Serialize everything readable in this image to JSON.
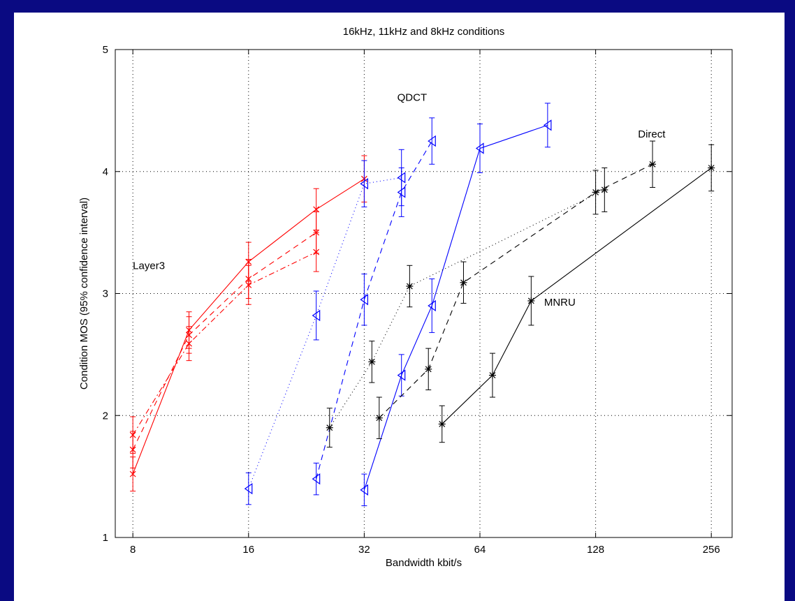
{
  "chart_data": {
    "type": "line",
    "title": "16kHz, 11kHz and 8kHz conditions",
    "xlabel": "Bandwidth kbit/s",
    "ylabel": "Condition MOS (95% confidence interval)",
    "xscale": "log2",
    "xlim": [
      7.2,
      290
    ],
    "ylim": [
      1,
      5
    ],
    "xticks": [
      8,
      16,
      32,
      64,
      128,
      256
    ],
    "yticks": [
      1,
      2,
      3,
      4,
      5
    ],
    "grid": true,
    "annotations": [
      {
        "text": "Layer3",
        "x": 8.0,
        "y": 3.2
      },
      {
        "text": "QDCT",
        "x": 39,
        "y": 4.58
      },
      {
        "text": "Direct",
        "x": 165,
        "y": 4.28
      },
      {
        "text": "MNRU",
        "x": 94,
        "y": 2.9
      }
    ],
    "series": [
      {
        "group": "Layer3",
        "color": "#ff0000",
        "style": "solid",
        "marker": "x",
        "x": [
          8,
          11.2,
          16,
          24,
          32
        ],
        "y": [
          1.52,
          2.7,
          3.26,
          3.69,
          3.94
        ],
        "err": [
          0.14,
          0.15,
          0.16,
          0.17,
          0.19
        ]
      },
      {
        "group": "Layer3",
        "color": "#ff0000",
        "style": "dashed",
        "marker": "x",
        "x": [
          8,
          11.2,
          16,
          24
        ],
        "y": [
          1.72,
          2.66,
          3.12,
          3.5
        ],
        "err": [
          0.15,
          0.15,
          0.16,
          0.17
        ]
      },
      {
        "group": "Layer3",
        "color": "#ff0000",
        "style": "dashdot",
        "marker": "x",
        "x": [
          8,
          11.2,
          16,
          24
        ],
        "y": [
          1.84,
          2.59,
          3.07,
          3.34
        ],
        "err": [
          0.15,
          0.14,
          0.16,
          0.16
        ]
      },
      {
        "group": "QDCT",
        "color": "#0000ff",
        "style": "solid",
        "marker": "triangle",
        "x": [
          32,
          40,
          48,
          64,
          96
        ],
        "y": [
          1.39,
          2.33,
          2.9,
          4.19,
          4.38
        ],
        "err": [
          0.13,
          0.17,
          0.22,
          0.2,
          0.18
        ]
      },
      {
        "group": "QDCT",
        "color": "#0000ff",
        "style": "dashed",
        "marker": "triangle",
        "x": [
          24,
          32,
          40,
          48
        ],
        "y": [
          1.48,
          2.95,
          3.83,
          4.25
        ],
        "err": [
          0.13,
          0.21,
          0.2,
          0.19
        ]
      },
      {
        "group": "QDCT",
        "color": "#0000ff",
        "style": "dotted",
        "marker": "triangle",
        "x": [
          16,
          24,
          32,
          40
        ],
        "y": [
          1.4,
          2.82,
          3.9,
          3.95
        ],
        "err": [
          0.13,
          0.2,
          0.19,
          0.23
        ]
      },
      {
        "group": "MNRU",
        "color": "#000000",
        "style": "solid",
        "marker": "star",
        "x": [
          51,
          69,
          87,
          256
        ],
        "y": [
          1.93,
          2.33,
          2.94,
          4.03
        ],
        "err": [
          0.15,
          0.18,
          0.2,
          0.19
        ]
      },
      {
        "group": "Direct",
        "color": "#000000",
        "style": "dashed",
        "marker": "star",
        "x": [
          35,
          47,
          58,
          128,
          180
        ],
        "y": [
          1.98,
          2.38,
          3.09,
          3.83,
          4.06
        ],
        "err": [
          0.17,
          0.17,
          0.17,
          0.18,
          0.19
        ]
      },
      {
        "group": "Direct",
        "color": "#000000",
        "style": "dotted",
        "marker": "star",
        "x": [
          26,
          33.5,
          42,
          135
        ],
        "y": [
          1.9,
          2.44,
          3.06,
          3.85
        ],
        "err": [
          0.16,
          0.17,
          0.17,
          0.18
        ]
      }
    ]
  }
}
